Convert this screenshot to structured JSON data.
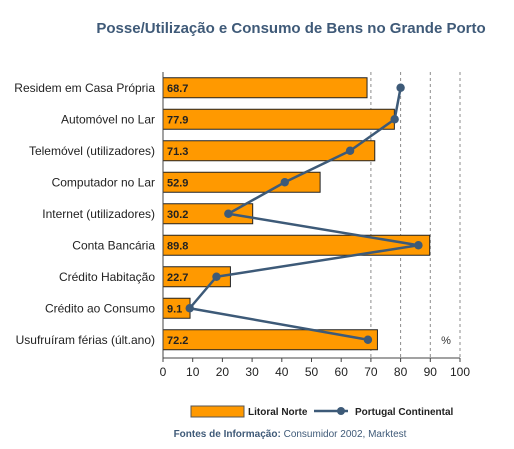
{
  "chart_data": {
    "type": "bar",
    "orientation": "horizontal",
    "title": "Posse/Utilização e Consumo de Bens no Grande Porto",
    "categories": [
      "Residem em Casa Própria",
      "Automóvel no Lar",
      "Telemóvel (utilizadores)",
      "Computador no Lar",
      "Internet (utilizadores)",
      "Conta Bancária",
      "Crédito Habitação",
      "Crédito ao Consumo",
      "Usufruíram férias (últ.ano)"
    ],
    "series": [
      {
        "name": "Litoral Norte",
        "type": "bar",
        "values": [
          68.7,
          77.9,
          71.3,
          52.9,
          30.2,
          89.8,
          22.7,
          9.1,
          72.2
        ],
        "color": "#ff9900",
        "data_labels": [
          "68.7",
          "77.9",
          "71.3",
          "52.9",
          "30.2",
          "89.8",
          "22.7",
          "9.1",
          "72.2"
        ]
      },
      {
        "name": "Portugal Continental",
        "type": "line",
        "values": [
          80,
          78,
          63,
          41,
          22,
          86,
          18,
          9,
          69
        ],
        "color": "#3d5a78"
      }
    ],
    "x_axis": {
      "range": [
        0,
        100
      ],
      "ticks": [
        "0",
        "10",
        "20",
        "30",
        "40",
        "50",
        "60",
        "70",
        "80",
        "90",
        "100"
      ],
      "unit_label": "%",
      "grid": "vertical dashed at 70, 80, 90, 100"
    },
    "legend_position": "bottom",
    "source": {
      "label": "Fontes de Informação:",
      "text": " Consumidor 2002, Marktest"
    }
  }
}
